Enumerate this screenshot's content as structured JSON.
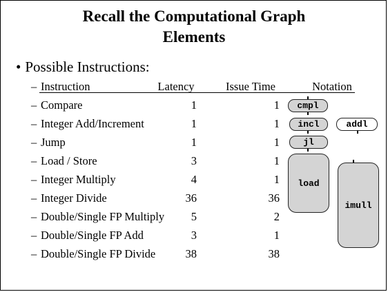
{
  "title_line1": "Recall the Computational Graph",
  "title_line2": "Elements",
  "bullet": "Possible Instructions:",
  "header": {
    "instruction": "Instruction",
    "latency": "Latency",
    "issue_time": "Issue Time",
    "notation": "Notation"
  },
  "rows": [
    {
      "name": "Compare",
      "latency": "1",
      "issue": "1"
    },
    {
      "name": "Integer Add/Increment",
      "latency": "1",
      "issue": "1"
    },
    {
      "name": "Jump",
      "latency": "1",
      "issue": "1"
    },
    {
      "name": "Load / Store",
      "latency": "3",
      "issue": "1"
    },
    {
      "name": "Integer Multiply",
      "latency": "4",
      "issue": "1"
    },
    {
      "name": "Integer Divide",
      "latency": "36",
      "issue": "36"
    },
    {
      "name": "Double/Single FP Multiply",
      "latency": "5",
      "issue": "2"
    },
    {
      "name": "Double/Single FP Add",
      "latency": "3",
      "issue": "1"
    },
    {
      "name": "Double/Single FP Divide",
      "latency": "38",
      "issue": "38"
    }
  ],
  "nodes": {
    "cmpl": "cmpl",
    "incl": "incl",
    "addl": "addl",
    "jl": "jl",
    "load": "load",
    "imull": "imull"
  },
  "dash": "–",
  "bullet_dot": "•"
}
